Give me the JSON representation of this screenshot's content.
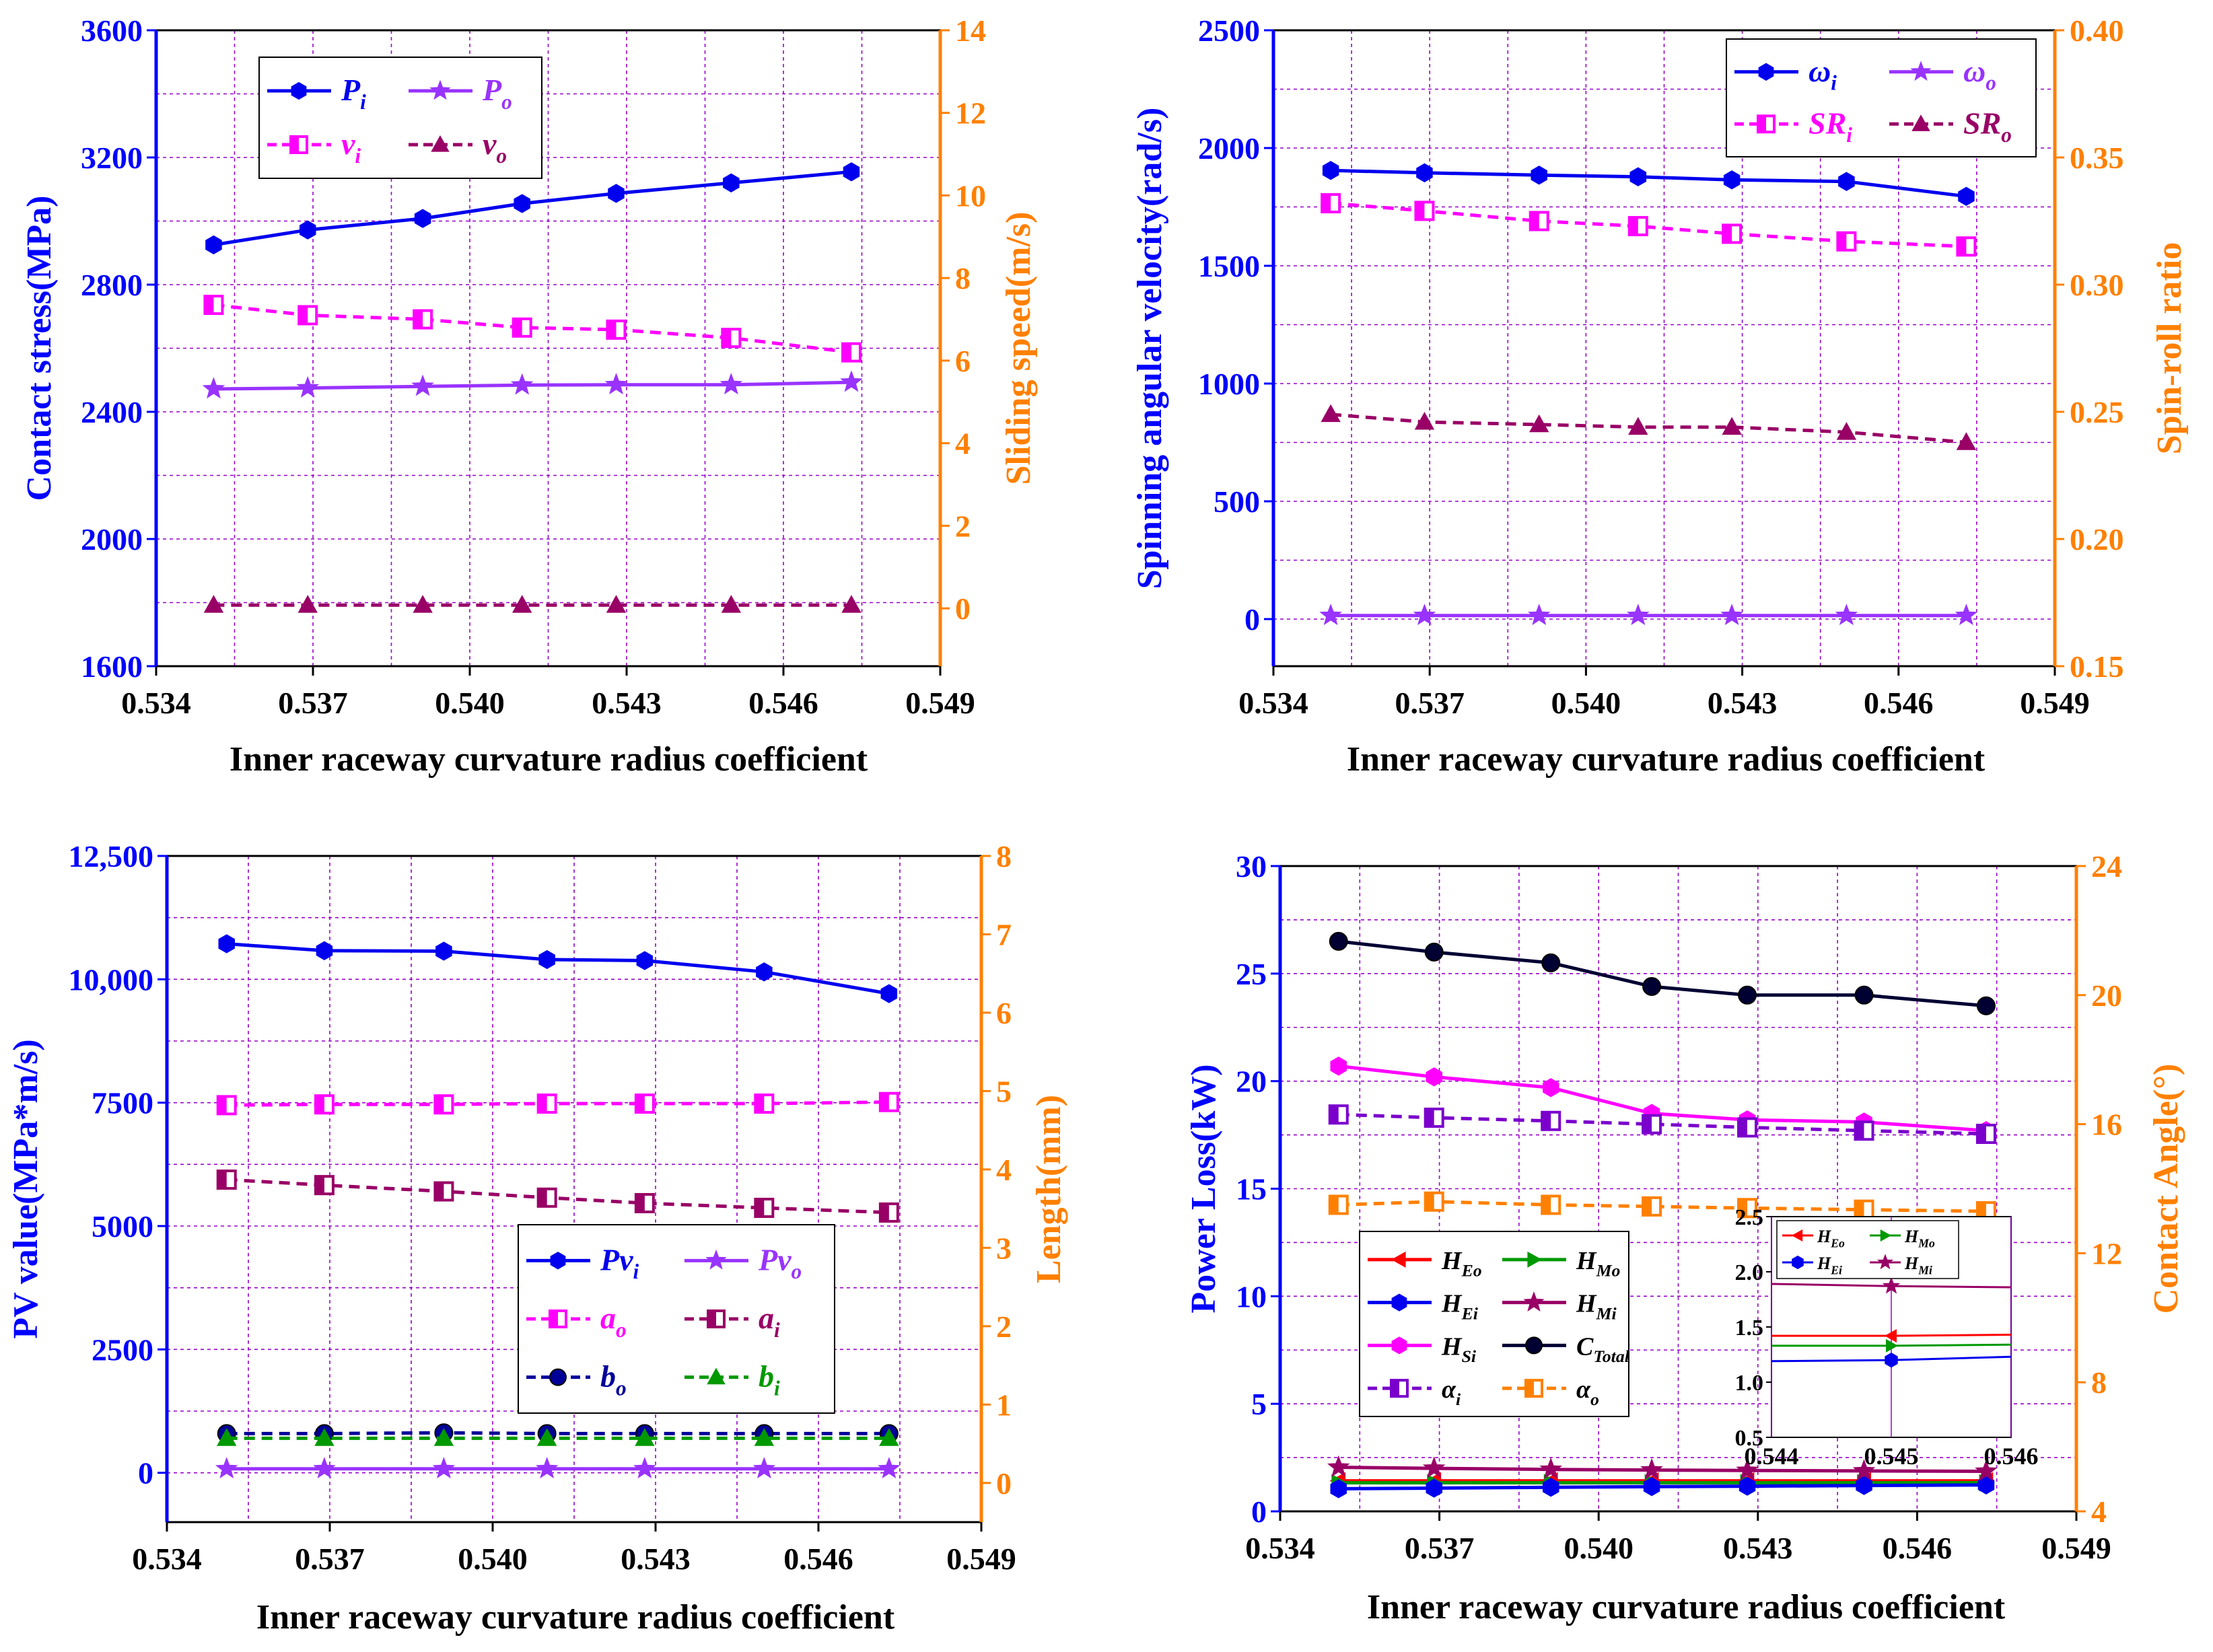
{
  "colors": {
    "left_axis": "#0000ff",
    "right_axis": "#ff8000",
    "grid": "#9900cc",
    "blue": "#0000ee",
    "violet": "#9933ff",
    "magenta": "#ff00ff",
    "maroon": "#990066",
    "navy": "#000099",
    "green": "#009900",
    "dark_navy": "#000033",
    "orange": "#ff8000",
    "red": "#ff0000",
    "purple": "#7a00cc"
  },
  "chart_data": [
    {
      "id": "a",
      "type": "line",
      "xlabel": "Inner raceway curvature radius coefficient",
      "ylabel_left": "Contact stress(MPa)",
      "ylabel_right": "Sliding speed(m/s)",
      "xlim": [
        0.534,
        0.549
      ],
      "ylim_left": [
        1600,
        3600
      ],
      "ylim_right": [
        -1.4,
        14
      ],
      "x_ticks": [
        "0.534",
        "0.537",
        "0.540",
        "0.543",
        "0.546",
        "0.549"
      ],
      "y_ticks_left": [
        "1600",
        "2000",
        "2400",
        "2800",
        "3200",
        "3600"
      ],
      "y_ticks_right": [
        "0",
        "2",
        "4",
        "6",
        "8",
        "10",
        "12",
        "14"
      ],
      "x": [
        0.5351,
        0.5369,
        0.5391,
        0.541,
        0.5428,
        0.545,
        0.5473
      ],
      "series": [
        {
          "name": "P",
          "sub": "i",
          "axis": "left",
          "values": [
            2925,
            2972,
            3008,
            3055,
            3087,
            3120,
            3155
          ],
          "color": "blue",
          "marker": "hex",
          "dash": false
        },
        {
          "name": "P",
          "sub": "o",
          "axis": "left",
          "values": [
            2472,
            2475,
            2480,
            2484,
            2485,
            2485,
            2493
          ],
          "color": "violet",
          "marker": "star",
          "dash": false
        },
        {
          "name": "v",
          "sub": "i",
          "axis": "right",
          "values": [
            7.35,
            7.1,
            7.0,
            6.8,
            6.75,
            6.55,
            6.2
          ],
          "color": "magenta",
          "marker": "square",
          "dash": true
        },
        {
          "name": "v",
          "sub": "o",
          "axis": "right",
          "values": [
            0.08,
            0.08,
            0.08,
            0.08,
            0.08,
            0.08,
            0.08
          ],
          "color": "maroon",
          "marker": "triangle",
          "dash": true
        }
      ],
      "legend": {
        "placement": "top-left",
        "cols": 2
      }
    },
    {
      "id": "b",
      "type": "line",
      "xlabel": "Inner raceway curvature radius coefficient",
      "ylabel_left": "Spinning angular velocity(rad/s)",
      "ylabel_right": "Spin-roll ratio",
      "xlim": [
        0.534,
        0.549
      ],
      "ylim_left": [
        -200,
        2500
      ],
      "ylim_right": [
        0.15,
        0.4
      ],
      "x_ticks": [
        "0.534",
        "0.537",
        "0.540",
        "0.543",
        "0.546",
        "0.549"
      ],
      "y_ticks_left": [
        "0",
        "500",
        "1000",
        "1500",
        "2000",
        "2500"
      ],
      "y_ticks_right": [
        "0.15",
        "0.20",
        "0.25",
        "0.30",
        "0.35",
        "0.40"
      ],
      "x": [
        0.5351,
        0.5369,
        0.5391,
        0.541,
        0.5428,
        0.545,
        0.5473
      ],
      "series": [
        {
          "name": "ω",
          "sub": "i",
          "axis": "left",
          "values": [
            1905,
            1895,
            1885,
            1878,
            1865,
            1858,
            1795
          ],
          "color": "blue",
          "marker": "hex",
          "dash": false
        },
        {
          "name": "ω",
          "sub": "o",
          "axis": "left",
          "values": [
            15,
            15,
            15,
            15,
            15,
            15,
            15
          ],
          "color": "violet",
          "marker": "star",
          "dash": false
        },
        {
          "name": "SR",
          "sub": "i",
          "axis": "right",
          "values": [
            0.332,
            0.329,
            0.325,
            0.323,
            0.32,
            0.317,
            0.315
          ],
          "color": "magenta",
          "marker": "square",
          "dash": true
        },
        {
          "name": "SR",
          "sub": "o",
          "axis": "right",
          "values": [
            0.249,
            0.246,
            0.245,
            0.244,
            0.244,
            0.242,
            0.238
          ],
          "color": "maroon",
          "marker": "triangle",
          "dash": true
        }
      ],
      "legend": {
        "placement": "top-right",
        "cols": 2
      }
    },
    {
      "id": "c",
      "type": "line",
      "xlabel": "Inner raceway curvature radius coefficient",
      "ylabel_left": "PV value(MPa*m/s)",
      "ylabel_right": "Length(mm)",
      "xlim": [
        0.534,
        0.549
      ],
      "ylim_left": [
        -1000,
        12500
      ],
      "ylim_right": [
        -0.5,
        8
      ],
      "x_ticks": [
        "0.534",
        "0.537",
        "0.540",
        "0.543",
        "0.546",
        "0.549"
      ],
      "y_ticks_left": [
        "0",
        "2500",
        "5000",
        "7500",
        "10,000",
        "12,500"
      ],
      "y_ticks_right": [
        "0",
        "1",
        "2",
        "3",
        "4",
        "5",
        "6",
        "7",
        "8"
      ],
      "x": [
        0.5351,
        0.5369,
        0.5391,
        0.541,
        0.5428,
        0.545,
        0.5473
      ],
      "series": [
        {
          "name": "Pv",
          "sub": "i",
          "axis": "left",
          "values": [
            10720,
            10580,
            10570,
            10400,
            10380,
            10150,
            9710
          ],
          "color": "blue",
          "marker": "hex",
          "dash": false
        },
        {
          "name": "Pv",
          "sub": "o",
          "axis": "left",
          "values": [
            80,
            80,
            80,
            80,
            80,
            80,
            80
          ],
          "color": "violet",
          "marker": "star",
          "dash": false
        },
        {
          "name": "a",
          "sub": "o",
          "axis": "right",
          "values": [
            4.82,
            4.83,
            4.83,
            4.84,
            4.84,
            4.84,
            4.86
          ],
          "color": "magenta",
          "marker": "square",
          "dash": true
        },
        {
          "name": "a",
          "sub": "i",
          "axis": "right",
          "values": [
            3.87,
            3.8,
            3.72,
            3.64,
            3.57,
            3.51,
            3.45
          ],
          "color": "maroon",
          "marker": "square",
          "dash": true
        },
        {
          "name": "b",
          "sub": "o",
          "axis": "right",
          "values": [
            0.63,
            0.63,
            0.64,
            0.63,
            0.63,
            0.63,
            0.63
          ],
          "color": "navy",
          "marker": "circle",
          "dash": true
        },
        {
          "name": "b",
          "sub": "i",
          "axis": "right",
          "values": [
            0.57,
            0.57,
            0.57,
            0.57,
            0.57,
            0.57,
            0.57
          ],
          "color": "green",
          "marker": "triangle",
          "dash": true
        }
      ],
      "legend": {
        "placement": "center-right",
        "cols": 2
      }
    },
    {
      "id": "d",
      "type": "line",
      "xlabel": "Inner  raceway curvature radius coefficient",
      "ylabel_left": "Power Loss(kW)",
      "ylabel_right": "Contact Angle(°)",
      "xlim": [
        0.534,
        0.549
      ],
      "ylim_left": [
        0,
        30
      ],
      "ylim_right": [
        4,
        24
      ],
      "x_ticks": [
        "0.534",
        "0.537",
        "0.540",
        "0.543",
        "0.546",
        "0.549"
      ],
      "y_ticks_left": [
        "0",
        "5",
        "10",
        "15",
        "20",
        "25",
        "30"
      ],
      "y_ticks_right": [
        "4",
        "8",
        "12",
        "16",
        "20",
        "24"
      ],
      "x": [
        0.5351,
        0.5369,
        0.5391,
        0.541,
        0.5428,
        0.545,
        0.5473
      ],
      "series": [
        {
          "name": "H",
          "sub": "Eo",
          "axis": "left",
          "values": [
            1.42,
            1.42,
            1.42,
            1.42,
            1.42,
            1.42,
            1.42
          ],
          "color": "red",
          "marker": "triangle-left",
          "dash": false
        },
        {
          "name": "H",
          "sub": "Mo",
          "axis": "left",
          "values": [
            1.33,
            1.33,
            1.33,
            1.33,
            1.33,
            1.33,
            1.33
          ],
          "color": "green",
          "marker": "triangle-right",
          "dash": false
        },
        {
          "name": "H",
          "sub": "Ei",
          "axis": "left",
          "values": [
            1.05,
            1.08,
            1.12,
            1.15,
            1.17,
            1.2,
            1.23
          ],
          "color": "blue",
          "marker": "hex",
          "dash": false
        },
        {
          "name": "H",
          "sub": "Mi",
          "axis": "left",
          "values": [
            2.05,
            2.0,
            1.95,
            1.92,
            1.9,
            1.88,
            1.86
          ],
          "color": "maroon",
          "marker": "star",
          "dash": false
        },
        {
          "name": "H",
          "sub": "Si",
          "axis": "left",
          "values": [
            20.7,
            20.2,
            19.7,
            18.5,
            18.2,
            18.1,
            17.7
          ],
          "color": "magenta",
          "marker": "hex",
          "dash": false
        },
        {
          "name": "C",
          "sub": "Total",
          "axis": "left",
          "values": [
            26.5,
            26.0,
            25.5,
            24.4,
            24.0,
            24.0,
            23.5
          ],
          "color": "dark_navy",
          "marker": "circle",
          "dash": false
        },
        {
          "name": "α",
          "sub": "i",
          "axis": "right",
          "values": [
            16.3,
            16.2,
            16.1,
            16.0,
            15.9,
            15.8,
            15.7
          ],
          "color": "purple",
          "marker": "square",
          "dash": true
        },
        {
          "name": "α",
          "sub": "o",
          "axis": "right",
          "values": [
            13.5,
            13.6,
            13.5,
            13.45,
            13.4,
            13.35,
            13.3
          ],
          "color": "orange",
          "marker": "square",
          "dash": true
        }
      ],
      "legend": {
        "placement": "lower-left",
        "cols": 2
      },
      "inset": {
        "xlim": [
          0.544,
          0.546
        ],
        "ylim": [
          0.5,
          2.5
        ],
        "x_ticks": [
          "0.544",
          "0.545",
          "0.546"
        ],
        "y_ticks": [
          "0.5",
          "1.0",
          "1.5",
          "2.0",
          "2.5"
        ],
        "x": [
          0.544,
          0.545,
          0.546
        ],
        "series": [
          {
            "name": "H",
            "sub": "Eo",
            "values": [
              1.42,
              1.42,
              1.43
            ],
            "color": "red",
            "marker": "triangle-left"
          },
          {
            "name": "H",
            "sub": "Mo",
            "values": [
              1.33,
              1.33,
              1.34
            ],
            "color": "green",
            "marker": "triangle-right"
          },
          {
            "name": "H",
            "sub": "Ei",
            "values": [
              1.19,
              1.2,
              1.23
            ],
            "color": "blue",
            "marker": "hex"
          },
          {
            "name": "H",
            "sub": "Mi",
            "values": [
              1.89,
              1.87,
              1.86
            ],
            "color": "maroon",
            "marker": "star"
          }
        ]
      }
    }
  ]
}
